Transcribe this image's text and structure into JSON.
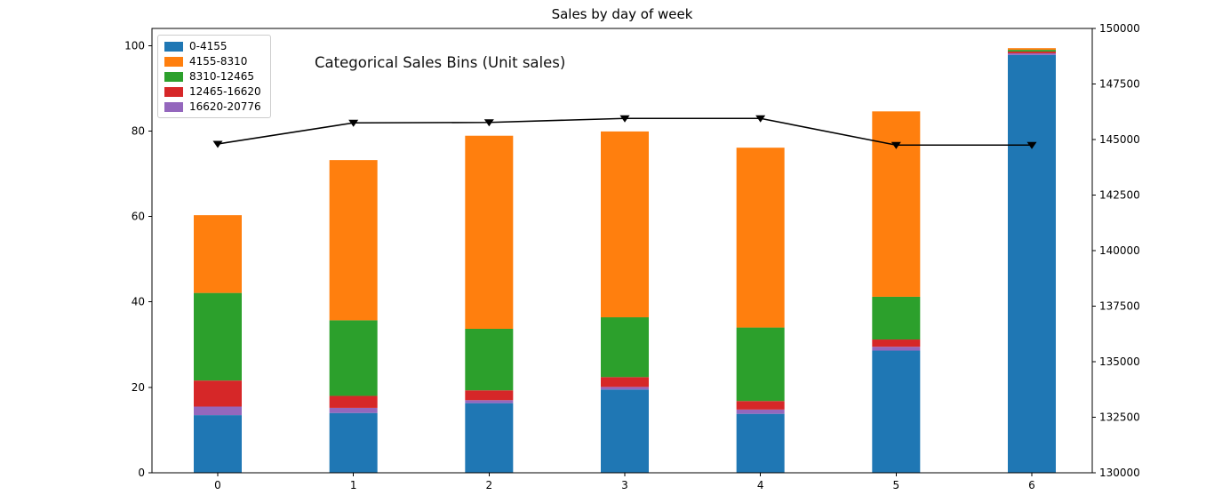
{
  "chart_data": {
    "type": "bar",
    "subtype": "stacked-bars-with-line-overlay",
    "title": "Sales by day of week",
    "annotation": "Categorical Sales Bins (Unit sales)",
    "categories": [
      "0",
      "1",
      "2",
      "3",
      "4",
      "5",
      "6"
    ],
    "series": [
      {
        "name": "0-4155",
        "color": "#1f77b4",
        "values": [
          13.5,
          14.0,
          16.3,
          19.5,
          13.8,
          28.6,
          97.8
        ]
      },
      {
        "name": "4155-8310",
        "color": "#ff7f0e",
        "values": [
          18.2,
          37.5,
          45.2,
          43.5,
          42.1,
          43.4,
          0.4
        ]
      },
      {
        "name": "8310-12465",
        "color": "#2ca02c",
        "values": [
          20.5,
          17.7,
          14.4,
          14.0,
          17.2,
          10.0,
          0.4
        ]
      },
      {
        "name": "12465-16620",
        "color": "#d62728",
        "values": [
          6.1,
          2.8,
          2.3,
          2.3,
          2.0,
          1.7,
          0.4
        ]
      },
      {
        "name": "16620-20776",
        "color": "#9467bd",
        "values": [
          2.0,
          1.2,
          0.7,
          0.6,
          1.0,
          0.9,
          0.4
        ]
      }
    ],
    "stack_order_bottom_to_top": [
      "0-4155",
      "16620-20776",
      "12465-16620",
      "8310-12465",
      "4155-8310"
    ],
    "bar_totals": [
      60.3,
      73.2,
      78.9,
      79.9,
      76.1,
      84.6,
      99.4
    ],
    "line": {
      "axis": "right",
      "color": "#000000",
      "marker": "triangle-down",
      "values": [
        144800,
        145750,
        145770,
        145950,
        145950,
        144750,
        144750
      ]
    },
    "axes": {
      "x": {
        "tick_labels": [
          "0",
          "1",
          "2",
          "3",
          "4",
          "5",
          "6"
        ]
      },
      "left": {
        "tick_labels": [
          "0",
          "20",
          "40",
          "60",
          "80",
          "100"
        ],
        "ticks": [
          0,
          20,
          40,
          60,
          80,
          100
        ],
        "range": [
          0,
          104
        ]
      },
      "right": {
        "tick_labels": [
          "130000",
          "132500",
          "135000",
          "137500",
          "140000",
          "142500",
          "145000",
          "147500",
          "150000"
        ],
        "ticks": [
          130000,
          132500,
          135000,
          137500,
          140000,
          142500,
          145000,
          147500,
          150000
        ],
        "range": [
          130000,
          150000
        ]
      }
    },
    "legend_position": "upper left",
    "grid": false,
    "background_color": "#ffffff"
  }
}
